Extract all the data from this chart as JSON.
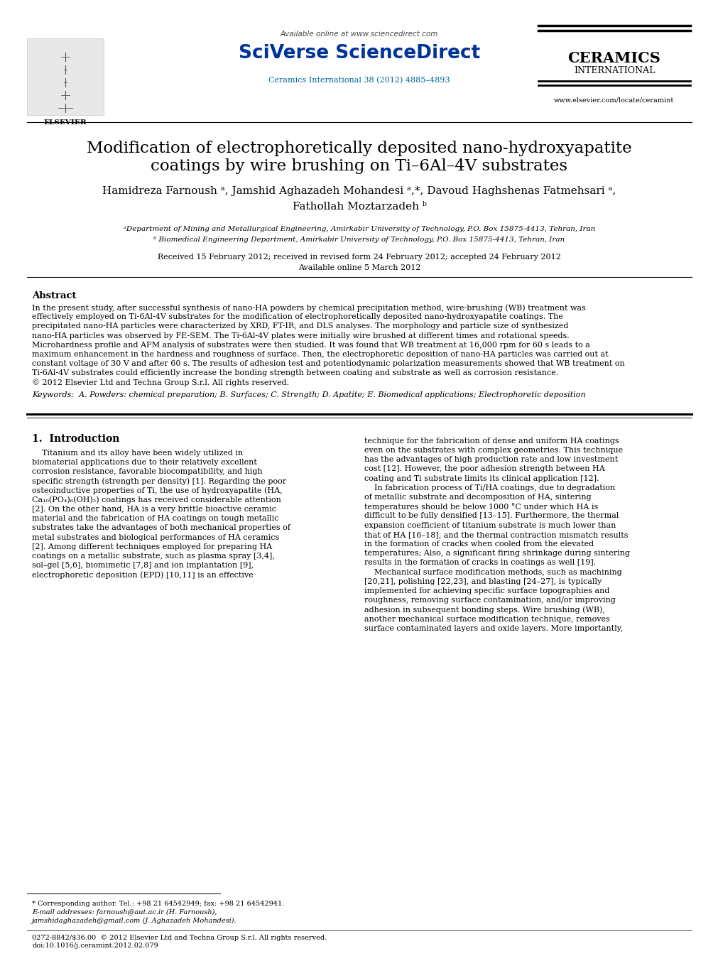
{
  "background_color": "#ffffff",
  "header": {
    "available_text": "Available online at www.sciencedirect.com",
    "available_url_color": "#006699",
    "sciverse_text": "SciVerse ScienceDirect",
    "sciverse_color": "#003399",
    "journal_ref": "Ceramics International 38 (2012) 4885–4893",
    "journal_ref_color": "#006699",
    "ceramics_title": "CERAMICS",
    "ceramics_subtitle": "INTERNATIONAL",
    "website": "www.elsevier.com/locate/ceramint"
  },
  "title_line1": "Modification of electrophoretically deposited nano-hydroxyapatite",
  "title_line2": "coatings by wire brushing on Ti–6Al–4V substrates",
  "authors": "Hamidreza Farnoush ᵃ, Jamshid Aghazadeh Mohandesi ᵃ,*, Davoud Haghshenas Fatmehsari ᵃ,",
  "authors_line2": "Fathollah Moztarzadeh ᵇ",
  "affil_a": "ᵃDepartment of Mining and Metallurgical Engineering, Amirkabir University of Technology, P.O. Box 15875-4413, Tehran, Iran",
  "affil_b": "ᵇ Biomedical Engineering Department, Amirkabir University of Technology, P.O. Box 15875-4413, Tehran, Iran",
  "received": "Received 15 February 2012; received in revised form 24 February 2012; accepted 24 February 2012",
  "available_online": "Available online 5 March 2012",
  "abstract_title": "Abstract",
  "abstract_text": "In the present study, after successful synthesis of nano-HA powders by chemical precipitation method, wire-brushing (WB) treatment was\neffectively employed on Ti-6Al-4V substrates for the modification of electrophoretically deposited nano-hydroxyapatite coatings. The\nprecipitated nano-HA particles were characterized by XRD, FT-IR, and DLS analyses. The morphology and particle size of synthesized\nnano-HA particles was observed by FE-SEM. The Ti-6Al-4V plates were initially wire brushed at different times and rotational speeds.\nMicrohardness profile and AFM analysis of substrates were then studied. It was found that WB treatment at 16,000 rpm for 60 s leads to a\nmaximum enhancement in the hardness and roughness of surface. Then, the electrophoretic deposition of nano-HA particles was carried out at\nconstant voltage of 30 V and after 60 s. The results of adhesion test and potentiodynamic polarization measurements showed that WB treatment on\nTi-6Al-4V substrates could efficiently increase the bonding strength between coating and substrate as well as corrosion resistance.\n© 2012 Elsevier Ltd and Techna Group S.r.l. All rights reserved.",
  "keywords": "Keywords:  A. Powders: chemical preparation; B. Surfaces; C. Strength; D. Apatite; E. Biomedical applications; Electrophoretic deposition",
  "intro_title": "1.  Introduction",
  "intro_left": "    Titanium and its alloy have been widely utilized in\nbiomaterial applications due to their relatively excellent\ncorrosion resistance, favorable biocompatibility, and high\nspecific strength (strength per density) [1]. Regarding the poor\nosteoinductive properties of Ti, the use of hydroxyapatite (HA,\nCa₁₀(PO₄)₆(OH)₂) coatings has received considerable attention\n[2]. On the other hand, HA is a very brittle bioactive ceramic\nmaterial and the fabrication of HA coatings on tough metallic\nsubstrates take the advantages of both mechanical properties of\nmetal substrates and biological performances of HA ceramics\n[2]. Among different techniques employed for preparing HA\ncoatings on a metallic substrate, such as plasma spray [3,4],\nsol–gel [5,6], biomimetic [7,8] and ion implantation [9],\nelectrophoretic deposition (EPD) [10,11] is an effective",
  "intro_right": "technique for the fabrication of dense and uniform HA coatings\neven on the substrates with complex geometries. This technique\nhas the advantages of high production rate and low investment\ncost [12]. However, the poor adhesion strength between HA\ncoating and Ti substrate limits its clinical application [12].\n    In fabrication process of Ti/HA coatings, due to degradation\nof metallic substrate and decomposition of HA, sintering\ntemperatures should be below 1000 °C under which HA is\ndifficult to be fully densified [13–15]. Furthermore, the thermal\nexpansion coefficient of titanium substrate is much lower than\nthat of HA [16–18], and the thermal contraction mismatch results\nin the formation of cracks when cooled from the elevated\ntemperatures; Also, a significant firing shrinkage during sintering\nresults in the formation of cracks in coatings as well [19].\n    Mechanical surface modification methods, such as machining\n[20,21], polishing [22,23], and blasting [24–27], is typically\nimplemented for achieving specific surface topographies and\nroughness, removing surface contamination, and/or improving\nadhesion in subsequent bonding steps. Wire brushing (WB),\nanother mechanical surface modification technique, removes\nsurface contaminated layers and oxide layers. More importantly,",
  "footer_left": "0272-8842/$36.00  © 2012 Elsevier Ltd and Techna Group S.r.l. All rights reserved.",
  "footer_doi": "doi:10.1016/j.ceramint.2012.02.079",
  "footnote_star": "* Corresponding author. Tel.: +98 21 64542949; fax: +98 21 64542941.",
  "footnote_email": "E-mail addresses: farnoush@aut.ac.ir (H. Farnoush),",
  "footnote_email2": "jamshidaghazadeh@gmail.com (J. Aghazadeh Mohandesi)."
}
